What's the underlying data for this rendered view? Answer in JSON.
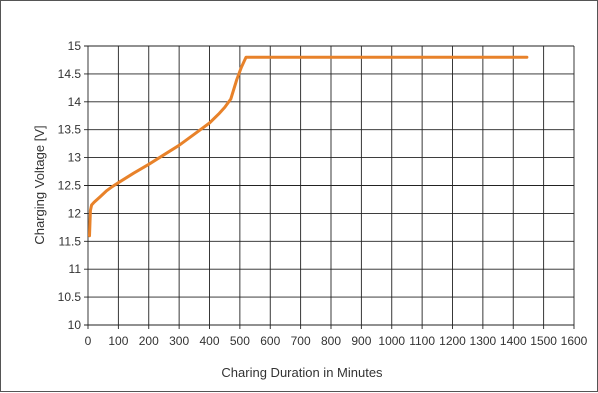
{
  "chart_data": {
    "type": "line",
    "title": "",
    "xlabel": "Charing Duration in Minutes",
    "ylabel": "Charging Voltage [V]",
    "xlim": [
      0,
      1600
    ],
    "ylim": [
      10,
      15
    ],
    "x_ticks": [
      0,
      100,
      200,
      300,
      400,
      500,
      600,
      700,
      800,
      900,
      1000,
      1100,
      1200,
      1300,
      1400,
      1500,
      1600
    ],
    "y_ticks": [
      10,
      10.5,
      11,
      11.5,
      12,
      12.5,
      13,
      13.5,
      14,
      14.5,
      15
    ],
    "grid": true,
    "line_color": "#e8822a",
    "series": [
      {
        "x": [
          5,
          6,
          8,
          12,
          20,
          40,
          60,
          80,
          100,
          150,
          200,
          250,
          300,
          350,
          400,
          430,
          450,
          470,
          490,
          505,
          520,
          540,
          700,
          1000,
          1300,
          1445
        ],
        "values": [
          11.6,
          11.75,
          12.05,
          12.15,
          12.2,
          12.3,
          12.4,
          12.48,
          12.55,
          12.72,
          12.88,
          13.05,
          13.22,
          13.42,
          13.62,
          13.78,
          13.9,
          14.05,
          14.4,
          14.62,
          14.8,
          14.8,
          14.8,
          14.8,
          14.8,
          14.8
        ]
      }
    ]
  }
}
